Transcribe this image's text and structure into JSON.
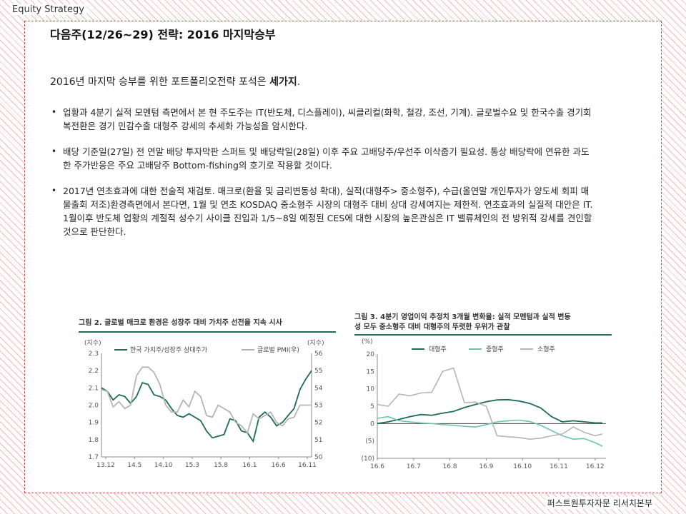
{
  "header": {
    "label": "Equity Strategy"
  },
  "title": "다음주(12/26~29) 전략: 2016 마지막승부",
  "subtitle": {
    "prefix": "2016년 마지막 승부를 위한 포트폴리오전략 포석은 ",
    "bold": "세가지",
    "suffix": "."
  },
  "bullets": [
    "업황과 4분기 실적 모멘텀 측면에서 본 현 주도주는 IT(반도체, 디스플레이), 씨클리컬(화학, 철강, 조선, 기계). 글로벌수요 및 한국수출 경기회복전환은 경기 민감수출 대형주 강세의 추세화 가능성을 암시한다.",
    "배당 기준일(27일) 전 연말 배당 투자막판 스퍼트 및 배당락일(28일) 이후 주요 고배당주/우선주 이삭줍기 필요성. 통상 배당락에 연유한 과도한 주가반응은 주요 고배당주 Bottom-fishing의 호기로 작용할 것이다.",
    "2017년 연초효과에 대한 전술적 재검토. 매크로(환율 및 금리변동성 확대), 실적(대형주> 중소형주), 수급(올연말 개인투자가 양도세 회피 매물출회 저조)환경측면에서 본다면, 1월 및 연초 KOSDAQ 중소형주 시장의 대형주 대비 상대 강세여지는 제한적. 연초효과의 실질적 대안은 IT. 1월이후 반도체 업황의 계절적 성수기 사이클 진입과 1/5~8일 예정된 CES에 대한 시장의 높은관심은 IT 밸류체인의 전 방위적 강세를 견인할 것으로 판단한다."
  ],
  "figure2": {
    "title": "그림 2. 글로벌 매크로 환경은 성장주 대비 가치주 선전을 지속 시사",
    "left_unit": "(지수)",
    "right_unit": "(지수)",
    "legend": [
      "한국 가치주/성장주 상대주가",
      "글로벌 PMI(우)"
    ]
  },
  "figure3": {
    "title_line1": "그림 3. 4분기 영업이익 추정치 3개월 변화율: 실적 모멘텀과 실적 변동",
    "title_line2": "성 모두 중소형주 대비 대형주의 뚜렷한 우위가 관찰",
    "unit": "(%)",
    "legend": [
      "대형주",
      "중형주",
      "소형주"
    ]
  },
  "footer": {
    "label": "퍼스트원투자자문 리서치본부"
  },
  "colors": {
    "teal": "#1f6a5a",
    "lightteal": "#6fc2ac",
    "gray": "#b5b5b5",
    "frame": "#c0504d"
  },
  "chart_data": [
    {
      "type": "line",
      "title": "그림 2. 글로벌 매크로 환경은 성장주 대비 가치주 선전을 지속 시사",
      "x_ticks": [
        "13.12",
        "14.5",
        "14.10",
        "15.3",
        "15.8",
        "16.1",
        "16.6",
        "16.11"
      ],
      "x_range": [
        0,
        36
      ],
      "y_left": {
        "range": [
          1.7,
          2.3
        ],
        "ticks": [
          1.7,
          1.8,
          1.9,
          2.0,
          2.1,
          2.2,
          2.3
        ]
      },
      "y_right": {
        "range": [
          50,
          56
        ],
        "ticks": [
          50,
          51,
          52,
          53,
          54,
          55,
          56
        ]
      },
      "series": [
        {
          "name": "한국 가치주/성장주 상대주가",
          "axis": "left",
          "x": [
            0,
            1,
            2,
            3,
            4,
            5,
            6,
            7,
            8,
            9,
            10,
            11,
            12,
            13,
            14,
            15,
            16,
            17,
            18,
            19,
            20,
            21,
            22,
            23,
            24,
            25,
            26,
            27,
            28,
            29,
            30,
            31,
            32,
            33,
            34,
            35,
            36
          ],
          "values": [
            2.1,
            2.08,
            2.03,
            2.06,
            2.05,
            2.01,
            2.05,
            2.13,
            2.12,
            2.06,
            2.05,
            2.03,
            1.98,
            1.94,
            1.93,
            1.95,
            1.93,
            1.91,
            1.85,
            1.81,
            1.82,
            1.83,
            1.92,
            1.91,
            1.85,
            1.84,
            1.79,
            1.93,
            1.96,
            1.93,
            1.88,
            1.9,
            1.94,
            1.98,
            2.09,
            2.15,
            2.2
          ]
        },
        {
          "name": "글로벌 PMI(우)",
          "axis": "right",
          "x": [
            0,
            1,
            2,
            3,
            4,
            5,
            6,
            7,
            8,
            9,
            10,
            11,
            12,
            13,
            14,
            15,
            16,
            17,
            18,
            19,
            20,
            21,
            22,
            23,
            24,
            25,
            26,
            27,
            28,
            29,
            30,
            31,
            32,
            33,
            34,
            35,
            36
          ],
          "values": [
            53.9,
            53.8,
            52.9,
            53.2,
            52.8,
            53.0,
            54.7,
            55.2,
            55.2,
            54.9,
            54.2,
            53.0,
            52.6,
            52.6,
            53.3,
            52.9,
            53.8,
            53.5,
            52.4,
            52.3,
            53.0,
            52.8,
            52.6,
            52.0,
            51.8,
            51.4,
            52.5,
            52.2,
            52.4,
            52.6,
            52.0,
            51.8,
            52.2,
            52.3,
            53.0,
            53.0,
            53.0
          ]
        }
      ]
    },
    {
      "type": "line",
      "title": "그림 3. 4분기 영업이익 추정치 3개월 변화율: 실적 모멘텀과 실적 변동성 모두 중소형주 대비 대형주의 뚜렷한 우위가 관찰",
      "x_ticks": [
        "16.6",
        "16.7",
        "16.8",
        "16.9",
        "16.10",
        "16.11",
        "16.12"
      ],
      "x_range": [
        0,
        6.3
      ],
      "ylabel": "(%)",
      "y_range": [
        -10,
        20
      ],
      "y_ticks": [
        20,
        15,
        10,
        5,
        0,
        -5,
        -10
      ],
      "y_tick_labels": [
        "20",
        "15",
        "10",
        "5",
        "0",
        "(5)",
        "(10)"
      ],
      "series": [
        {
          "name": "대형주",
          "x": [
            0,
            0.3,
            0.6,
            0.9,
            1.2,
            1.5,
            1.8,
            2.1,
            2.4,
            2.7,
            3.0,
            3.3,
            3.6,
            3.9,
            4.2,
            4.5,
            4.8,
            5.1,
            5.4,
            5.7,
            6.0,
            6.2
          ],
          "values": [
            0.0,
            0.5,
            1.2,
            2.0,
            2.6,
            2.4,
            3.0,
            3.5,
            4.6,
            5.5,
            6.3,
            6.8,
            6.9,
            6.5,
            5.8,
            4.5,
            2.0,
            0.5,
            0.8,
            0.5,
            0.2,
            0.2
          ]
        },
        {
          "name": "중형주",
          "x": [
            0,
            0.3,
            0.6,
            0.9,
            1.2,
            1.5,
            1.8,
            2.1,
            2.4,
            2.7,
            3.0,
            3.3,
            3.6,
            3.9,
            4.2,
            4.5,
            4.8,
            5.1,
            5.4,
            5.7,
            6.0,
            6.2
          ],
          "values": [
            1.5,
            2.0,
            0.8,
            0.5,
            0.2,
            0.0,
            -0.3,
            -0.5,
            -0.8,
            -1.0,
            -0.3,
            0.5,
            0.8,
            1.0,
            0.6,
            -0.5,
            -2.0,
            -3.5,
            -4.5,
            -4.3,
            -5.5,
            -6.5
          ]
        },
        {
          "name": "소형주",
          "x": [
            0,
            0.3,
            0.6,
            0.9,
            1.2,
            1.5,
            1.8,
            2.1,
            2.4,
            2.7,
            3.0,
            3.3,
            3.6,
            3.9,
            4.2,
            4.5,
            4.8,
            5.1,
            5.4,
            5.7,
            6.0,
            6.2
          ],
          "values": [
            5.5,
            5.0,
            8.5,
            8.0,
            8.8,
            9.0,
            15.0,
            16.0,
            6.0,
            6.2,
            5.0,
            -3.5,
            -3.8,
            -4.0,
            -4.5,
            -4.2,
            -3.5,
            -3.0,
            -1.0,
            -2.5,
            -3.5,
            -3.0
          ]
        }
      ]
    }
  ]
}
